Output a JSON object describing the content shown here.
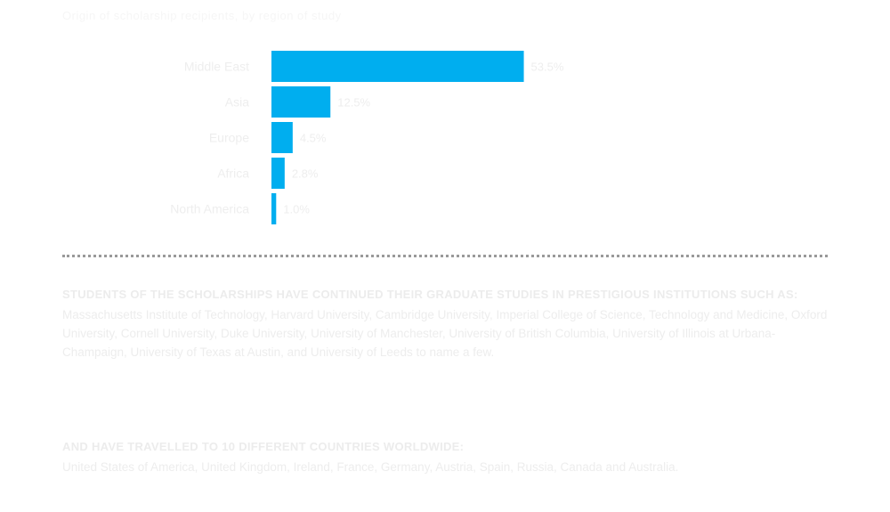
{
  "page": {
    "top_caption": "Origin of scholarship recipients, by region of study"
  },
  "chart_data": {
    "type": "bar",
    "orientation": "horizontal",
    "categories": [
      "Middle East",
      "Asia",
      "Europe",
      "Africa",
      "North America"
    ],
    "values": [
      53.5,
      12.5,
      4.5,
      2.8,
      1.0
    ],
    "value_labels": [
      "53.5%",
      "12.5%",
      "4.5%",
      "2.8%",
      "1.0%"
    ],
    "bar_color": "#00aeef",
    "xlim": [
      0,
      100
    ],
    "grid": false,
    "legend": "none"
  },
  "section1": {
    "heading": "Students of the scholarships have continued their graduate studies in prestigious institutions such as:",
    "body": "Massachusetts Institute of Technology, Harvard University, Cambridge University, Imperial College of Science, Technology and Medicine, Oxford University, Cornell University, Duke University, University of Manchester, University of British Columbia, University of Illinois at Urbana-Champaign, University of Texas at Austin, and University of Leeds to name a few."
  },
  "section2": {
    "heading": "And have travelled to 10 different countries worldwide:",
    "body": "United States of America, United Kingdom, Ireland, France, Germany, Austria, Spain, Russia, Canada and Australia."
  }
}
